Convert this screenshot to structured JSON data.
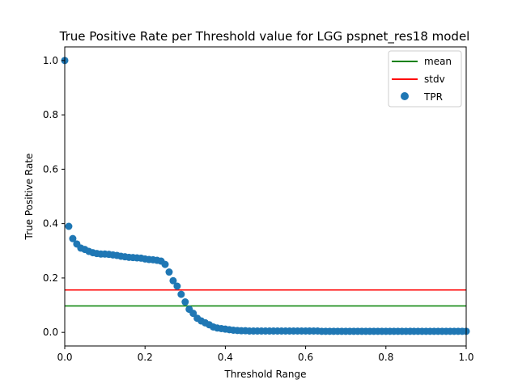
{
  "chart_data": {
    "type": "scatter",
    "title": "True Positive Rate per Threshold value for LGG pspnet_res18 model",
    "xlabel": "Threshold Range",
    "ylabel": "True Positive Rate",
    "xlim": [
      0.0,
      1.0
    ],
    "ylim": [
      -0.05,
      1.05
    ],
    "x_ticks": [
      "0.0",
      "0.2",
      "0.4",
      "0.6",
      "0.8",
      "1.0"
    ],
    "y_ticks": [
      "0.0",
      "0.2",
      "0.4",
      "0.6",
      "0.8",
      "1.0"
    ],
    "grid": false,
    "legend_position": "top-right",
    "series": [
      {
        "name": "TPR",
        "kind": "scatter",
        "color": "#1f77b4",
        "x": [
          0.0,
          0.01,
          0.02,
          0.03,
          0.04,
          0.05,
          0.06,
          0.07,
          0.08,
          0.09,
          0.1,
          0.11,
          0.12,
          0.13,
          0.14,
          0.15,
          0.16,
          0.17,
          0.18,
          0.19,
          0.2,
          0.21,
          0.22,
          0.23,
          0.24,
          0.25,
          0.26,
          0.27,
          0.28,
          0.29,
          0.3,
          0.31,
          0.32,
          0.33,
          0.34,
          0.35,
          0.36,
          0.37,
          0.38,
          0.39,
          0.4,
          0.41,
          0.42,
          0.43,
          0.44,
          0.45,
          0.46,
          0.47,
          0.48,
          0.49,
          0.5,
          0.51,
          0.52,
          0.53,
          0.54,
          0.55,
          0.56,
          0.57,
          0.58,
          0.59,
          0.6,
          0.61,
          0.62,
          0.63,
          0.64,
          0.65,
          0.66,
          0.67,
          0.68,
          0.69,
          0.7,
          0.71,
          0.72,
          0.73,
          0.74,
          0.75,
          0.76,
          0.77,
          0.78,
          0.79,
          0.8,
          0.81,
          0.82,
          0.83,
          0.84,
          0.85,
          0.86,
          0.87,
          0.88,
          0.89,
          0.9,
          0.91,
          0.92,
          0.93,
          0.94,
          0.95,
          0.96,
          0.97,
          0.98,
          0.99,
          1.0
        ],
        "y": [
          1.0,
          0.39,
          0.345,
          0.325,
          0.31,
          0.305,
          0.298,
          0.293,
          0.29,
          0.288,
          0.288,
          0.287,
          0.285,
          0.283,
          0.28,
          0.278,
          0.276,
          0.275,
          0.274,
          0.273,
          0.27,
          0.268,
          0.267,
          0.265,
          0.262,
          0.25,
          0.222,
          0.19,
          0.17,
          0.14,
          0.112,
          0.085,
          0.07,
          0.052,
          0.042,
          0.035,
          0.028,
          0.02,
          0.016,
          0.014,
          0.012,
          0.01,
          0.008,
          0.007,
          0.006,
          0.006,
          0.005,
          0.005,
          0.005,
          0.005,
          0.005,
          0.005,
          0.005,
          0.005,
          0.005,
          0.005,
          0.005,
          0.005,
          0.005,
          0.005,
          0.005,
          0.005,
          0.005,
          0.005,
          0.004,
          0.004,
          0.004,
          0.004,
          0.004,
          0.004,
          0.004,
          0.004,
          0.004,
          0.004,
          0.004,
          0.004,
          0.004,
          0.004,
          0.004,
          0.004,
          0.004,
          0.004,
          0.004,
          0.004,
          0.004,
          0.004,
          0.004,
          0.004,
          0.004,
          0.004,
          0.004,
          0.004,
          0.004,
          0.004,
          0.004,
          0.004,
          0.004,
          0.004,
          0.004,
          0.004,
          0.004
        ]
      },
      {
        "name": "mean",
        "kind": "hline",
        "color": "#008000",
        "y": 0.097
      },
      {
        "name": "stdv",
        "kind": "hline",
        "color": "#ff0000",
        "y": 0.156
      }
    ],
    "legend": [
      "mean",
      "stdv",
      "TPR"
    ]
  }
}
